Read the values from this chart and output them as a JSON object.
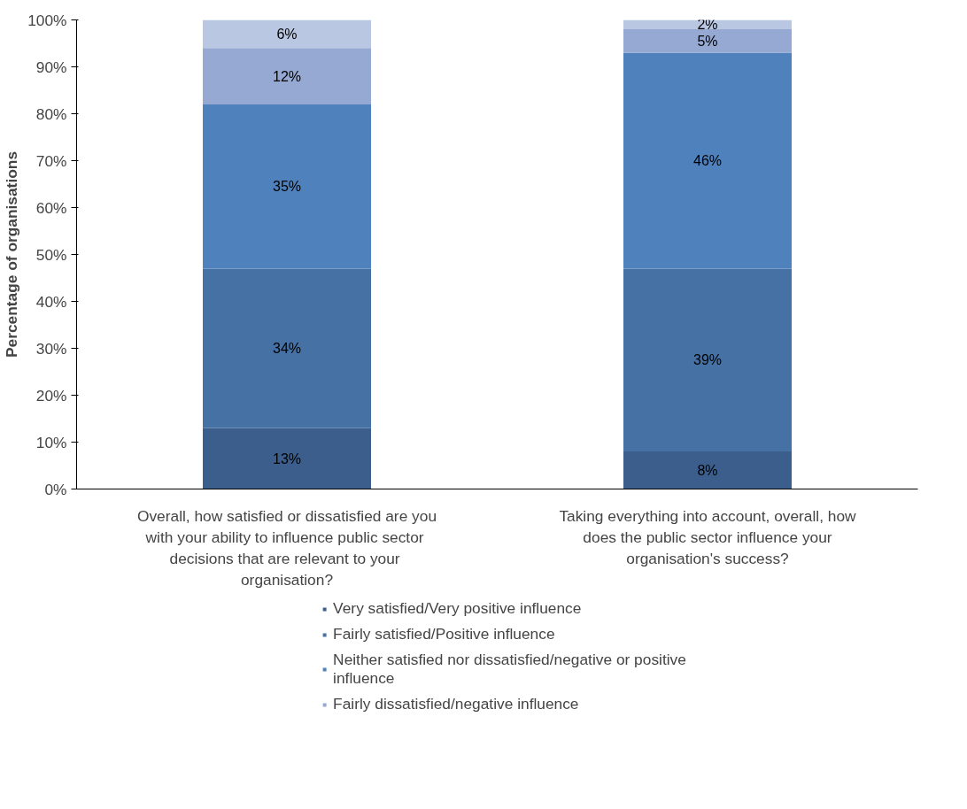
{
  "chart_data": {
    "type": "bar",
    "stacked": true,
    "ylabel": "Percentage of organisations",
    "categories": [
      "Overall, how satisfied or dissatisfied are you with your ability to influence  public sector decisions that are relevant to  your organisation?",
      "Taking everything into account, overall, how does the public sector influence your organisation's success?"
    ],
    "series": [
      {
        "name": "Very satisfied/Very positive influence",
        "color": "#3b5e8c",
        "values": [
          13,
          8
        ],
        "value_labels": [
          "13%",
          "8%"
        ]
      },
      {
        "name": "Fairly satisfied/Positive influence",
        "color": "#4571a4",
        "values": [
          34,
          39
        ],
        "value_labels": [
          "34%",
          "39%"
        ]
      },
      {
        "name": "Neither satisfied nor dissatisfied/negative or positive influence",
        "color": "#4f81bd",
        "values": [
          35,
          46
        ],
        "value_labels": [
          "35%",
          "46%"
        ]
      },
      {
        "name": "Fairly dissatisfied/negative influence",
        "color": "#95a9d2",
        "values": [
          12,
          5
        ],
        "value_labels": [
          "12%",
          "5%"
        ]
      },
      {
        "color": "#b9c7e3",
        "values": [
          6,
          2
        ],
        "value_labels": [
          "6%",
          "2%"
        ]
      }
    ],
    "ylim": [
      0,
      100
    ],
    "yticks": [
      {
        "value": 0,
        "label": "0%"
      },
      {
        "value": 10,
        "label": "10%"
      },
      {
        "value": 20,
        "label": "20%"
      },
      {
        "value": 30,
        "label": "30%"
      },
      {
        "value": 40,
        "label": "40%"
      },
      {
        "value": 50,
        "label": "50%"
      },
      {
        "value": 60,
        "label": "60%"
      },
      {
        "value": 70,
        "label": "70%"
      },
      {
        "value": 80,
        "label": "80%"
      },
      {
        "value": 90,
        "label": "90%"
      },
      {
        "value": 100,
        "label": "100%"
      }
    ],
    "legend": "bottom"
  }
}
